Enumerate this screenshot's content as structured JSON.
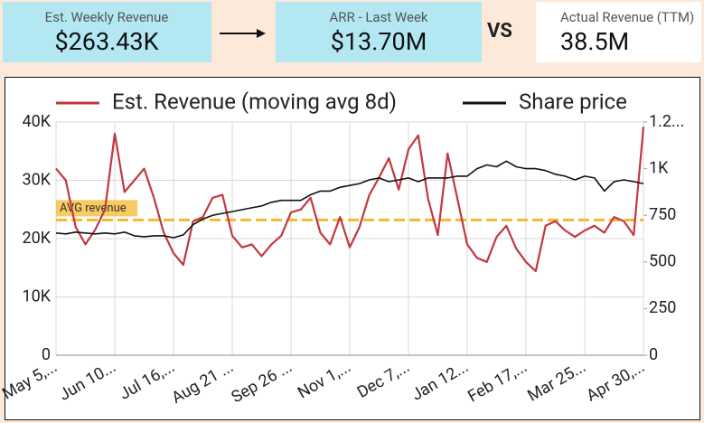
{
  "kpis": [
    {
      "label": "Est. Weekly Revenue",
      "value": "$263.43K"
    },
    {
      "label": "ARR - Last Week",
      "value": "$13.70M"
    },
    {
      "label": "Actual Revenue (TTM)",
      "value": "38.5M"
    }
  ],
  "vs": "VS",
  "chart_data": {
    "type": "line",
    "categories": [
      "May 5,...",
      null,
      null,
      null,
      null,
      null,
      "Jun 10...",
      null,
      null,
      null,
      null,
      null,
      "Jul 16,...",
      null,
      null,
      null,
      null,
      null,
      "Aug 21 ...",
      null,
      null,
      null,
      null,
      null,
      "Sep 26 ...",
      null,
      null,
      null,
      null,
      null,
      "Nov 1,...",
      null,
      null,
      null,
      null,
      null,
      "Dec 7,...",
      null,
      null,
      null,
      null,
      null,
      "Jan 12...",
      null,
      null,
      null,
      null,
      null,
      "Feb 17,...",
      null,
      null,
      null,
      null,
      null,
      "Mar 25...",
      null,
      null,
      null,
      null,
      null,
      "Apr 30,..."
    ],
    "series": [
      {
        "name": "Est. Revenue (moving avg 8d)",
        "color": "#c0393f",
        "axis": "y",
        "values": [
          32000,
          30000,
          22000,
          19000,
          21500,
          25000,
          38000,
          28000,
          30000,
          32000,
          27000,
          21000,
          17500,
          15500,
          23000,
          23700,
          27000,
          27500,
          20500,
          18500,
          19000,
          17000,
          19000,
          20500,
          24500,
          25000,
          27000,
          21000,
          19000,
          23700,
          18500,
          22000,
          27500,
          30500,
          33800,
          28400,
          35300,
          37700,
          26800,
          20600,
          34600,
          26800,
          19000,
          16700,
          16000,
          20300,
          22200,
          18300,
          16000,
          14400,
          22200,
          23000,
          21400,
          20300,
          21400,
          22200,
          21000,
          23700,
          23000,
          20600,
          39200
        ]
      },
      {
        "name": "Share price",
        "color": "#111111",
        "axis": "y2",
        "values": [
          655,
          650,
          660,
          655,
          650,
          655,
          650,
          660,
          640,
          635,
          640,
          640,
          630,
          645,
          700,
          730,
          750,
          760,
          770,
          780,
          790,
          800,
          820,
          830,
          830,
          830,
          860,
          880,
          880,
          900,
          910,
          920,
          940,
          950,
          930,
          940,
          950,
          930,
          950,
          950,
          950,
          960,
          960,
          1000,
          1020,
          1010,
          1040,
          1010,
          1000,
          1000,
          990,
          970,
          960,
          940,
          960,
          950,
          880,
          930,
          940,
          930,
          920
        ]
      }
    ],
    "ylim": [
      0,
      40000
    ],
    "yticks": [
      {
        "value": 0,
        "label": "0"
      },
      {
        "value": 10000,
        "label": "10K"
      },
      {
        "value": 20000,
        "label": "20K"
      },
      {
        "value": 30000,
        "label": "30K"
      },
      {
        "value": 40000,
        "label": "40K"
      }
    ],
    "y2lim": [
      0,
      1250
    ],
    "y2ticks": [
      0,
      250,
      500,
      750,
      {
        "value": 1000,
        "label": "1K"
      },
      {
        "value": 1250,
        "label": "1.2..."
      }
    ],
    "reference_line": {
      "label": "AVG revenue",
      "value": 23200,
      "color": "#f5b82e"
    },
    "grid": true,
    "legend": "top"
  }
}
